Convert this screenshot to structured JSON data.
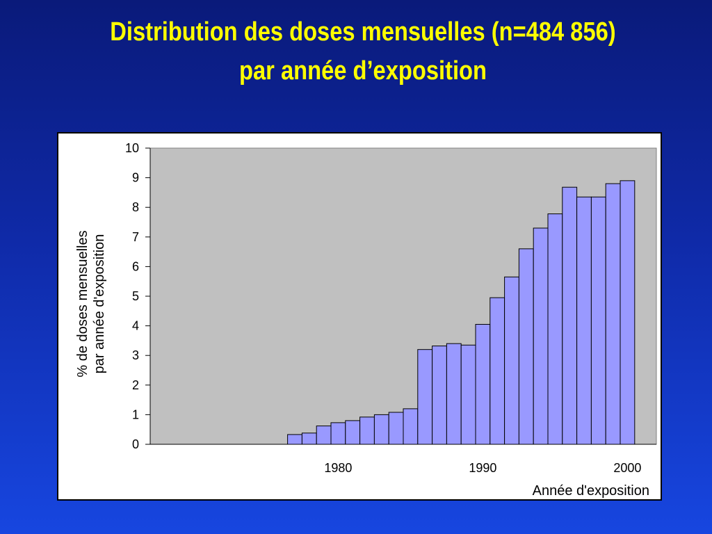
{
  "slide": {
    "title_line1": "Distribution des doses mensuelles (n=484 856)",
    "title_line2": "par année d’exposition"
  },
  "chart_data": {
    "type": "bar",
    "categories": [
      1977,
      1978,
      1979,
      1980,
      1981,
      1982,
      1983,
      1984,
      1985,
      1986,
      1987,
      1988,
      1989,
      1990,
      1991,
      1992,
      1993,
      1994,
      1995,
      1996,
      1997,
      1998,
      1999,
      2000
    ],
    "values": [
      0.33,
      0.38,
      0.62,
      0.73,
      0.8,
      0.92,
      1.0,
      1.08,
      1.2,
      3.2,
      3.32,
      3.4,
      3.35,
      4.05,
      4.95,
      5.65,
      6.6,
      7.3,
      7.78,
      8.68,
      8.35,
      8.35,
      8.8,
      8.9
    ],
    "xlabel": "Année d'exposition",
    "ylabel_line1": "% de doses mensuelles",
    "ylabel_line2": "par année d'exposition",
    "ylim": [
      0,
      10
    ],
    "xlim": [
      1967,
      2002
    ],
    "yticks": [
      0,
      1,
      2,
      3,
      4,
      5,
      6,
      7,
      8,
      9,
      10
    ],
    "xticks": [
      "1980",
      "1990",
      "2000"
    ],
    "plot_background": "#c0c0c0",
    "bar_color": "#9999ff",
    "bar_edge": "#000000",
    "grid": false,
    "legend": "none"
  }
}
